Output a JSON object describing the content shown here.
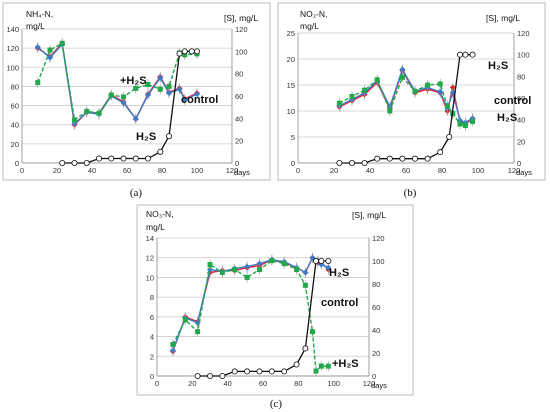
{
  "colors": {
    "red": "#e8202a",
    "blue": "#3b7bc8",
    "green": "#20a84a",
    "black": "#111111",
    "grid": "#cccccc",
    "frame": "#bbbbbb"
  },
  "chart_data": [
    {
      "type": "line",
      "caption": "(a)",
      "ylabel_left": [
        "NH₄-N,",
        "mg/L"
      ],
      "ylabel_right": "[S], mg/L",
      "xlabel": "days",
      "xlim": [
        0,
        120
      ],
      "xticks": [
        0,
        20,
        40,
        60,
        80,
        100,
        120
      ],
      "ylim_left": [
        0,
        140
      ],
      "yticks_left": [
        0,
        20,
        40,
        60,
        80,
        100,
        120,
        140
      ],
      "ylim_right": [
        0,
        120
      ],
      "yticks_right": [
        0,
        20,
        40,
        60,
        80,
        100,
        120
      ],
      "annotations": [
        "+H₂S",
        "H₂S",
        "control"
      ],
      "series": [
        {
          "name": "control",
          "color": "red",
          "axis": "left",
          "marker": "diamond",
          "dash": false,
          "x": [
            9,
            16,
            23,
            30,
            37,
            44,
            51,
            58,
            65,
            72,
            79,
            84,
            90,
            93,
            100
          ],
          "y": [
            120,
            111,
            125,
            40,
            53,
            52,
            71,
            64,
            46,
            72,
            90,
            74,
            78,
            67,
            73
          ]
        },
        {
          "name": "control-blue",
          "color": "blue",
          "axis": "left",
          "marker": "diamond",
          "dash": false,
          "x": [
            9,
            16,
            23,
            30,
            37,
            44,
            51,
            58,
            65,
            72,
            79,
            84,
            90,
            93,
            100
          ],
          "y": [
            121,
            110,
            124,
            41,
            53,
            51,
            70,
            63,
            46,
            71,
            89,
            73,
            77,
            66,
            72
          ]
        },
        {
          "name": "+H₂S",
          "color": "green",
          "axis": "left",
          "marker": "square",
          "dash": true,
          "x": [
            9,
            16,
            23,
            30,
            37,
            44,
            51,
            58,
            65,
            72,
            79,
            84,
            90,
            93,
            100
          ],
          "y": [
            84,
            118,
            125,
            45,
            54,
            52,
            71,
            69,
            78,
            82,
            77,
            80,
            115,
            113,
            114
          ]
        },
        {
          "name": "H₂S",
          "color": "black",
          "axis": "right",
          "marker": "circle",
          "dash": false,
          "x": [
            23,
            30,
            37,
            44,
            51,
            58,
            65,
            72,
            79,
            84,
            90,
            93,
            97,
            100
          ],
          "y": [
            0,
            0,
            0,
            4,
            4,
            4,
            4,
            4,
            10,
            24,
            98,
            100,
            100,
            100
          ]
        }
      ]
    },
    {
      "type": "line",
      "caption": "(b)",
      "ylabel_left": [
        "NO₂-N,",
        "mg/L"
      ],
      "ylabel_right": "[S], mg/L",
      "xlabel": "days",
      "xlim": [
        0,
        120
      ],
      "xticks": [
        0,
        20,
        40,
        60,
        80,
        100,
        120
      ],
      "ylim_left": [
        0,
        25
      ],
      "yticks_left": [
        0,
        5,
        10,
        15,
        20,
        25
      ],
      "ylim_right": [
        0,
        120
      ],
      "yticks_right": [
        0,
        20,
        40,
        60,
        80,
        100,
        120
      ],
      "annotations": [
        "H₂S",
        "control",
        "H₂S"
      ],
      "series": [
        {
          "name": "control",
          "color": "red",
          "axis": "left",
          "marker": "diamond",
          "dash": false,
          "x": [
            23,
            30,
            37,
            44,
            51,
            58,
            65,
            72,
            79,
            83,
            86,
            90,
            93,
            97
          ],
          "y": [
            10.8,
            12,
            13.2,
            15.5,
            10.5,
            17.8,
            13.5,
            14.2,
            13.5,
            10,
            14.5,
            8,
            7.5,
            8.5
          ]
        },
        {
          "name": "control-blue",
          "color": "blue",
          "axis": "left",
          "marker": "diamond",
          "dash": false,
          "x": [
            23,
            30,
            37,
            44,
            51,
            58,
            65,
            72,
            79,
            83,
            86,
            90,
            93,
            97
          ],
          "y": [
            11,
            12.2,
            13.5,
            15.8,
            10.8,
            18,
            13.8,
            14.5,
            13.7,
            10.5,
            13.5,
            8.2,
            7.8,
            8.6
          ]
        },
        {
          "name": "+H₂S",
          "color": "green",
          "axis": "left",
          "marker": "square",
          "dash": true,
          "x": [
            23,
            30,
            37,
            44,
            51,
            58,
            65,
            72,
            79,
            83,
            86,
            90,
            93,
            97
          ],
          "y": [
            11.5,
            12.8,
            14,
            16,
            10,
            16.5,
            13.8,
            15,
            15.2,
            11,
            9.5,
            7.5,
            7.2,
            8
          ]
        },
        {
          "name": "H₂S",
          "color": "black",
          "axis": "right",
          "marker": "circle",
          "dash": false,
          "x": [
            23,
            30,
            37,
            44,
            51,
            58,
            65,
            72,
            79,
            84,
            90,
            93,
            97
          ],
          "y": [
            0,
            0,
            0,
            4,
            4,
            4,
            4,
            4,
            10,
            24,
            100,
            100,
            100
          ]
        }
      ]
    },
    {
      "type": "line",
      "caption": "(c)",
      "ylabel_left": [
        "NO₃-N,",
        "mg/L"
      ],
      "ylabel_right": "[S], mg/L",
      "xlabel": "days",
      "xlim": [
        0,
        120
      ],
      "xticks": [
        0,
        20,
        40,
        60,
        80,
        100,
        120
      ],
      "ylim_left": [
        0,
        14
      ],
      "yticks_left": [
        0,
        2,
        4,
        6,
        8,
        10,
        12,
        14
      ],
      "ylim_right": [
        0,
        120
      ],
      "yticks_right": [
        0,
        20,
        40,
        60,
        80,
        100,
        120
      ],
      "annotations": [
        "H₂S",
        "control",
        "+H₂S"
      ],
      "series": [
        {
          "name": "control",
          "color": "red",
          "axis": "left",
          "marker": "diamond",
          "dash": false,
          "x": [
            9,
            16,
            23,
            30,
            37,
            44,
            51,
            58,
            65,
            72,
            79,
            84,
            88,
            91,
            93,
            97
          ],
          "y": [
            2.5,
            6,
            5.5,
            10.5,
            10.7,
            10.7,
            11,
            11.2,
            11.8,
            11.5,
            11,
            10.5,
            12,
            11.5,
            11.5,
            10.8
          ]
        },
        {
          "name": "control-blue",
          "color": "blue",
          "axis": "left",
          "marker": "diamond",
          "dash": false,
          "x": [
            9,
            16,
            23,
            30,
            37,
            44,
            51,
            58,
            65,
            72,
            79,
            84,
            88,
            91,
            93,
            97
          ],
          "y": [
            2.6,
            5.9,
            5.4,
            10.8,
            10.6,
            10.9,
            11.1,
            11.4,
            11.8,
            11.6,
            11,
            10.5,
            12,
            11.7,
            11.3,
            11
          ]
        },
        {
          "name": "+H₂S",
          "color": "green",
          "axis": "left",
          "marker": "square",
          "dash": true,
          "x": [
            9,
            16,
            23,
            30,
            37,
            44,
            51,
            58,
            65,
            72,
            79,
            84,
            88,
            90,
            93,
            97
          ],
          "y": [
            3.2,
            5.7,
            4.5,
            11.3,
            10.5,
            10.8,
            10,
            10.8,
            11.7,
            11.4,
            10.8,
            9.2,
            4.5,
            0.5,
            1,
            1
          ]
        },
        {
          "name": "H₂S",
          "color": "black",
          "axis": "right",
          "marker": "circle",
          "dash": false,
          "x": [
            23,
            30,
            37,
            44,
            51,
            58,
            65,
            72,
            79,
            84,
            90,
            93,
            97
          ],
          "y": [
            0,
            0,
            0,
            4,
            4,
            4,
            4,
            4,
            10,
            24,
            100,
            100,
            100
          ]
        }
      ]
    }
  ]
}
